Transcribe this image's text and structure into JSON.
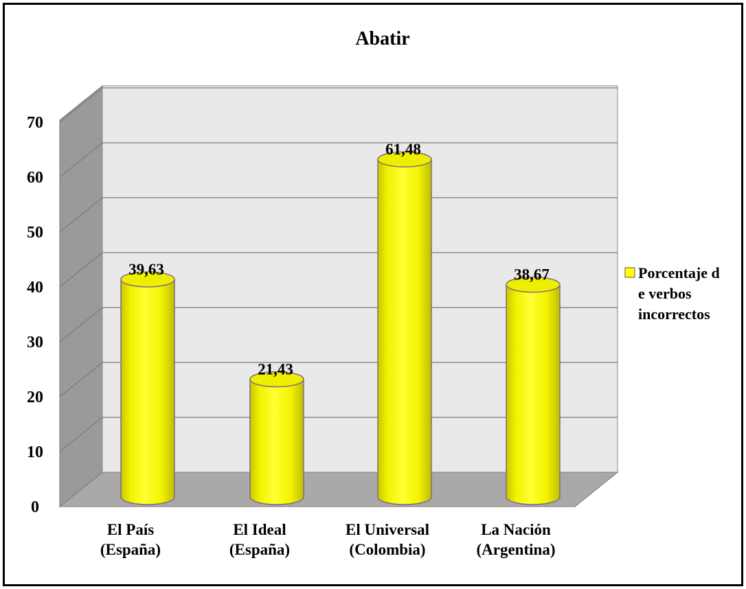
{
  "chart_data": {
    "type": "bar",
    "style": "3d-cylinder",
    "title": "Abatir",
    "categories": [
      [
        "El País",
        "(España)"
      ],
      [
        "El Ideal",
        "(España)"
      ],
      [
        "El Universal",
        "(Colombia)"
      ],
      [
        "La Nación",
        "(Argentina)"
      ]
    ],
    "series": [
      {
        "name": [
          "Porcentaje d",
          "e verbos",
          "incorrectos"
        ],
        "values": [
          39.63,
          21.43,
          61.48,
          38.67
        ],
        "value_labels": [
          "39,63",
          "21,43",
          "61,48",
          "38,67"
        ],
        "color": "#FFFF00"
      }
    ],
    "y_ticks": [
      0,
      10,
      20,
      30,
      40,
      50,
      60,
      70
    ],
    "ylim": [
      0,
      70
    ],
    "grid": true,
    "legend_position": "right",
    "colors": {
      "bar_fill": "#FFFF00",
      "bar_edge": "#7F6A86",
      "wall": "#E9E9E9",
      "side_wall": "#9A9A9A",
      "floor": "#A9A9A9",
      "grid": "#7A7A7A"
    }
  }
}
